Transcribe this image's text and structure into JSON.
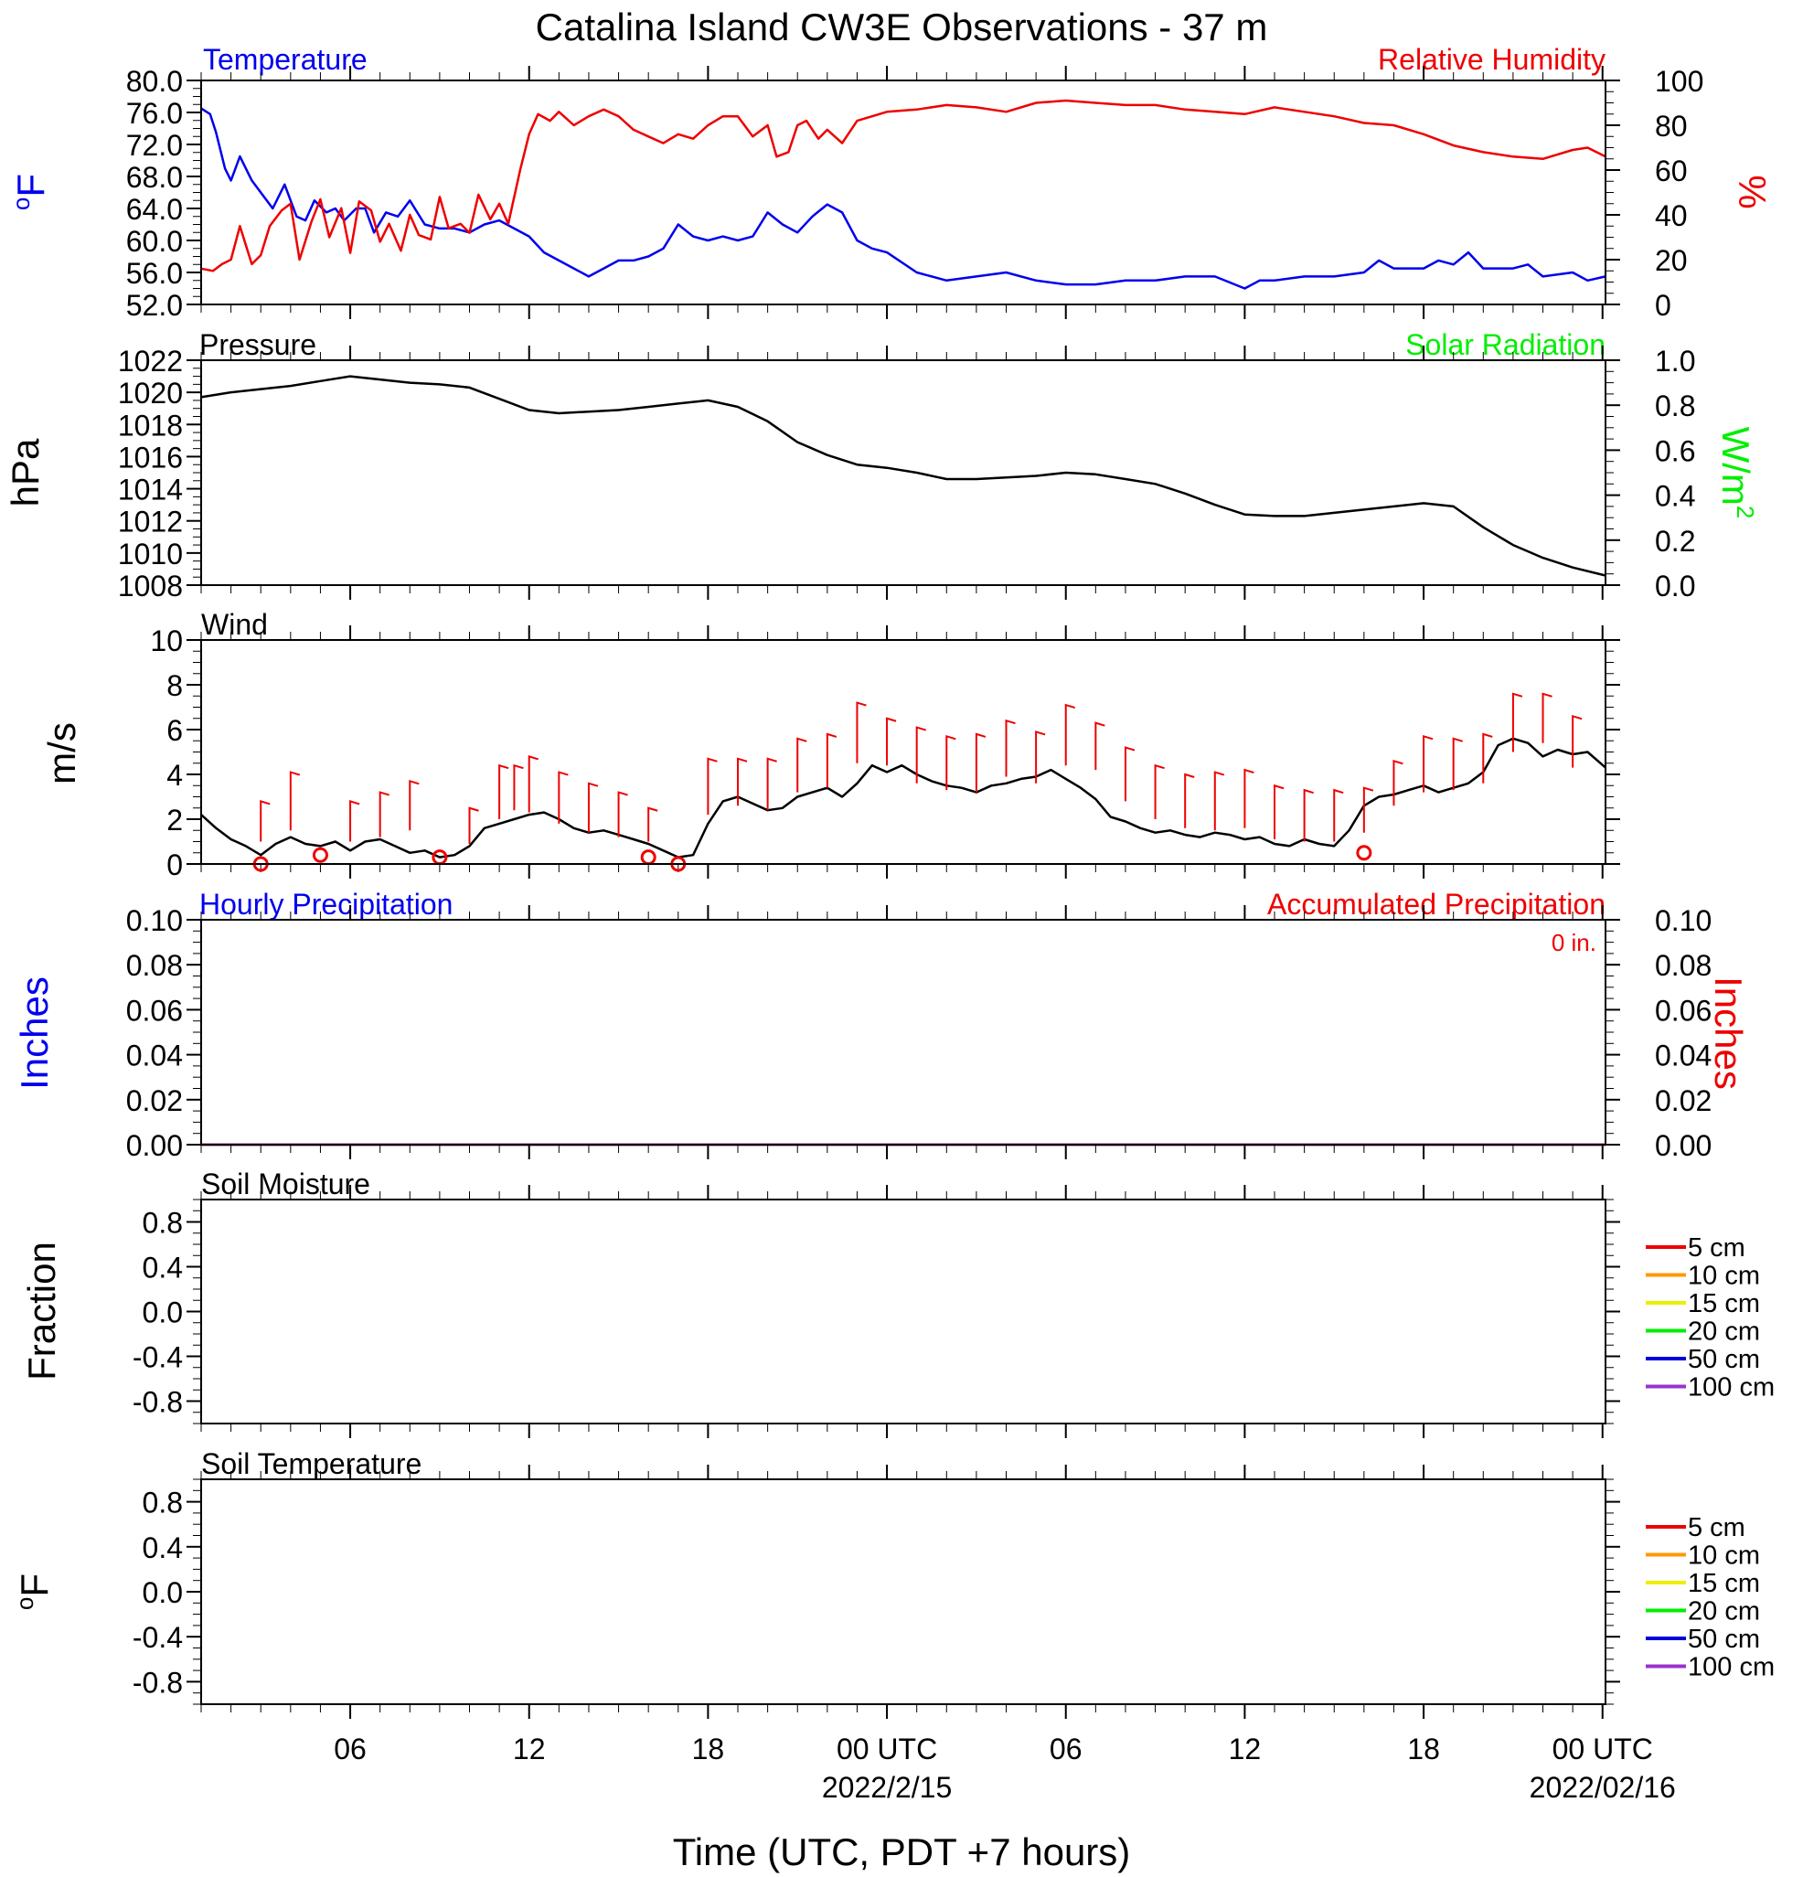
{
  "title": "Catalina Island CW3E Observations - 37 m",
  "xlabel": "Time (UTC, PDT +7 hours)",
  "x_ticks": [
    {
      "hour": 6,
      "label": "06"
    },
    {
      "hour": 12,
      "label": "12"
    },
    {
      "hour": 18,
      "label": "18"
    },
    {
      "hour": 24,
      "label": "00 UTC",
      "sublabel": "2022/2/15"
    },
    {
      "hour": 30,
      "label": "06"
    },
    {
      "hour": 36,
      "label": "12"
    },
    {
      "hour": 42,
      "label": "18"
    },
    {
      "hour": 48,
      "label": "00 UTC",
      "sublabel": "2022/02/16"
    }
  ],
  "colors": {
    "blue": "#0000ee",
    "red": "#ee0000",
    "green": "#00ee00",
    "black": "#000000",
    "darkred": "#aa0000"
  },
  "chart_data": [
    {
      "type": "line",
      "panel": "temperature_rh",
      "left_title": "Temperature",
      "right_title": "Relative Humidity",
      "left_unit": "oF",
      "right_unit": "%",
      "left_ticks": [
        "80.0",
        "76.0",
        "72.0",
        "68.0",
        "64.0",
        "60.0",
        "56.0",
        "52.0"
      ],
      "right_ticks": [
        "100",
        "80",
        "60",
        "40",
        "20",
        "0"
      ],
      "ylim_left": [
        52,
        80
      ],
      "ylim_right": [
        0,
        100
      ],
      "x_range_hours": [
        1,
        48.1
      ],
      "series": [
        {
          "name": "Temperature",
          "axis": "left",
          "color": "blue",
          "x": [
            1,
            1.3,
            1.5,
            1.8,
            2.0,
            2.3,
            2.7,
            3.0,
            3.4,
            3.8,
            4.2,
            4.5,
            4.8,
            5.2,
            5.5,
            5.8,
            6.2,
            6.5,
            6.8,
            7.2,
            7.6,
            8.0,
            8.5,
            9.0,
            9.5,
            10.0,
            10.5,
            11.0,
            11.5,
            12.0,
            12.5,
            13.0,
            13.5,
            14.0,
            14.5,
            15.0,
            15.5,
            16.0,
            16.5,
            17.0,
            17.5,
            18.0,
            18.5,
            19.0,
            19.5,
            20.0,
            20.5,
            21.0,
            21.5,
            22.0,
            22.5,
            23.0,
            23.5,
            24.0,
            25.0,
            26.0,
            27.0,
            28.0,
            29.0,
            30.0,
            31.0,
            32.0,
            33.0,
            34.0,
            35.0,
            36.0,
            36.5,
            37.0,
            38.0,
            39.0,
            40.0,
            40.5,
            41.0,
            42.0,
            42.5,
            43.0,
            43.5,
            44.0,
            45.0,
            45.5,
            46.0,
            47.0,
            47.5,
            48.1
          ],
          "y": [
            76.5,
            75.8,
            73.5,
            69.0,
            67.5,
            70.5,
            67.5,
            66.0,
            64.0,
            67.0,
            63.0,
            62.5,
            65.0,
            63.5,
            64.0,
            62.5,
            64.0,
            64.0,
            61.0,
            63.5,
            63.0,
            65.0,
            62.0,
            61.5,
            61.5,
            61.0,
            62.0,
            62.5,
            61.5,
            60.5,
            58.5,
            57.5,
            56.5,
            55.5,
            56.5,
            57.5,
            57.5,
            58.0,
            59.0,
            62.0,
            60.5,
            60.0,
            60.5,
            60.0,
            60.5,
            63.5,
            62.0,
            61.0,
            63.0,
            64.5,
            63.5,
            60.0,
            59.0,
            58.5,
            56.0,
            55.0,
            55.5,
            56.0,
            55.0,
            54.5,
            54.5,
            55.0,
            55.0,
            55.5,
            55.5,
            54.0,
            55.0,
            55.0,
            55.5,
            55.5,
            56.0,
            57.5,
            56.5,
            56.5,
            57.5,
            57.0,
            58.5,
            56.5,
            56.5,
            57.0,
            55.5,
            56.0,
            55.0,
            55.5
          ]
        },
        {
          "name": "Relative Humidity",
          "axis": "right",
          "color": "red",
          "x": [
            1,
            1.4,
            1.7,
            2.0,
            2.3,
            2.7,
            3.0,
            3.3,
            3.7,
            4.0,
            4.3,
            4.7,
            5.0,
            5.3,
            5.7,
            6.0,
            6.3,
            6.7,
            7.0,
            7.3,
            7.7,
            8.0,
            8.3,
            8.7,
            9.0,
            9.3,
            9.7,
            10.0,
            10.3,
            10.7,
            11.0,
            11.3,
            11.7,
            12.0,
            12.3,
            12.7,
            13.0,
            13.5,
            14.0,
            14.5,
            15.0,
            15.5,
            16.0,
            16.5,
            17.0,
            17.5,
            18.0,
            18.5,
            19.0,
            19.5,
            20.0,
            20.3,
            20.7,
            21.0,
            21.3,
            21.7,
            22.0,
            22.5,
            23.0,
            23.5,
            24.0,
            25.0,
            26.0,
            27.0,
            28.0,
            29.0,
            30.0,
            31.0,
            32.0,
            33.0,
            34.0,
            35.0,
            36.0,
            37.0,
            38.0,
            39.0,
            40.0,
            41.0,
            42.0,
            43.0,
            44.0,
            45.0,
            46.0,
            47.0,
            47.5,
            48.1
          ],
          "y": [
            16,
            15,
            18,
            20,
            35,
            18,
            22,
            35,
            42,
            45,
            20,
            37,
            47,
            30,
            43,
            23,
            46,
            42,
            28,
            36,
            24,
            40,
            31,
            29,
            48,
            34,
            36,
            32,
            49,
            38,
            45,
            36,
            60,
            76,
            85,
            82,
            86,
            80,
            84,
            87,
            84,
            78,
            75,
            72,
            76,
            74,
            80,
            84,
            84,
            75,
            80,
            66,
            68,
            80,
            82,
            74,
            78,
            72,
            82,
            84,
            86,
            87,
            89,
            88,
            86,
            90,
            91,
            90,
            89,
            89,
            87,
            86,
            85,
            88,
            86,
            84,
            81,
            80,
            76,
            71,
            68,
            66,
            65,
            69,
            70,
            66
          ]
        },
        {
          "name": "Relative Humidity tail",
          "axis": "right",
          "color": "red",
          "x": [],
          "y": []
        }
      ]
    },
    {
      "type": "line",
      "panel": "pressure_solar",
      "left_title": "Pressure",
      "right_title": "Solar Radiation",
      "left_unit": "hPa",
      "right_unit": "W/m",
      "right_unit_sup": "2",
      "left_ticks": [
        "1022",
        "1020",
        "1018",
        "1016",
        "1014",
        "1012",
        "1010",
        "1008"
      ],
      "right_ticks": [
        "1.0",
        "0.8",
        "0.6",
        "0.4",
        "0.2",
        "0.0"
      ],
      "ylim_left": [
        1008,
        1022
      ],
      "ylim_right": [
        0,
        1
      ],
      "x_range_hours": [
        1,
        48.1
      ],
      "series": [
        {
          "name": "Pressure",
          "axis": "left",
          "color": "black",
          "x": [
            1,
            2,
            3,
            4,
            5,
            6,
            7,
            8,
            9,
            10,
            11,
            12,
            13,
            14,
            15,
            16,
            17,
            18,
            19,
            20,
            21,
            22,
            23,
            24,
            25,
            26,
            27,
            28,
            29,
            30,
            31,
            32,
            33,
            34,
            35,
            36,
            37,
            38,
            39,
            40,
            41,
            42,
            43,
            44,
            45,
            46,
            47,
            48.1
          ],
          "y": [
            1019.7,
            1020.0,
            1020.2,
            1020.4,
            1020.7,
            1021.0,
            1020.8,
            1020.6,
            1020.5,
            1020.3,
            1019.6,
            1018.9,
            1018.7,
            1018.8,
            1018.9,
            1019.1,
            1019.3,
            1019.5,
            1019.1,
            1018.2,
            1016.9,
            1016.1,
            1015.5,
            1015.3,
            1015.0,
            1014.6,
            1014.6,
            1014.7,
            1014.8,
            1015.0,
            1014.9,
            1014.6,
            1014.3,
            1013.7,
            1013.0,
            1012.4,
            1012.3,
            1012.3,
            1012.5,
            1012.7,
            1012.9,
            1013.1,
            1012.9,
            1011.6,
            1010.5,
            1009.7,
            1009.1,
            1008.6
          ]
        }
      ]
    },
    {
      "type": "line",
      "panel": "wind",
      "left_title": "Wind",
      "left_unit": "m/s",
      "left_ticks": [
        "10",
        "8",
        "6",
        "4",
        "2",
        "0"
      ],
      "ylim_left": [
        0,
        10
      ],
      "x_range_hours": [
        1,
        48.1
      ],
      "series": [
        {
          "name": "Wind speed",
          "axis": "left",
          "color": "black",
          "x": [
            1,
            1.5,
            2,
            2.5,
            3,
            3.5,
            4,
            4.5,
            5,
            5.5,
            6,
            6.5,
            7,
            7.5,
            8,
            8.5,
            9,
            9.5,
            10,
            10.5,
            11,
            11.5,
            12,
            12.5,
            13,
            13.5,
            14,
            14.5,
            15,
            15.5,
            16,
            16.5,
            17,
            17.5,
            18,
            18.5,
            19,
            19.5,
            20,
            20.5,
            21,
            21.5,
            22,
            22.5,
            23,
            23.5,
            24,
            24.5,
            25,
            25.5,
            26,
            26.5,
            27,
            27.5,
            28,
            28.5,
            29,
            29.5,
            30,
            30.5,
            31,
            31.5,
            32,
            32.5,
            33,
            33.5,
            34,
            34.5,
            35,
            35.5,
            36,
            36.5,
            37,
            37.5,
            38,
            38.5,
            39,
            39.5,
            40,
            40.5,
            41,
            41.5,
            42,
            42.5,
            43,
            43.5,
            44,
            44.5,
            45,
            45.5,
            46,
            46.5,
            47,
            47.5,
            48.1
          ],
          "y": [
            2.2,
            1.6,
            1.1,
            0.8,
            0.4,
            0.9,
            1.2,
            0.9,
            0.8,
            1.0,
            0.6,
            1.0,
            1.1,
            0.8,
            0.5,
            0.6,
            0.3,
            0.4,
            0.8,
            1.6,
            1.8,
            2.0,
            2.2,
            2.3,
            2.0,
            1.6,
            1.4,
            1.5,
            1.3,
            1.1,
            0.9,
            0.6,
            0.3,
            0.4,
            1.8,
            2.8,
            3.0,
            2.7,
            2.4,
            2.5,
            3.0,
            3.2,
            3.4,
            3.0,
            3.6,
            4.4,
            4.1,
            4.4,
            4.0,
            3.7,
            3.5,
            3.4,
            3.2,
            3.5,
            3.6,
            3.8,
            3.9,
            4.2,
            3.8,
            3.4,
            2.9,
            2.1,
            1.9,
            1.6,
            1.4,
            1.5,
            1.3,
            1.2,
            1.4,
            1.3,
            1.1,
            1.2,
            0.9,
            0.8,
            1.1,
            0.9,
            0.8,
            1.5,
            2.6,
            3.0,
            3.1,
            3.3,
            3.5,
            3.2,
            3.4,
            3.6,
            4.1,
            5.3,
            5.6,
            5.4,
            4.8,
            5.1,
            4.9,
            5.0,
            4.3
          ]
        },
        {
          "name": "Calm markers",
          "axis": "left",
          "color": "red",
          "marker": "circle",
          "x": [
            3.0,
            5.0,
            9.0,
            16.0,
            17.0,
            40.0
          ],
          "y": [
            0.0,
            0.4,
            0.3,
            0.3,
            0.0,
            0.5
          ]
        }
      ],
      "barbs": {
        "color": "red",
        "x": [
          3.0,
          4.0,
          6.0,
          7.0,
          8.0,
          10.0,
          11.0,
          11.5,
          12.0,
          13.0,
          14.0,
          15.0,
          16.0,
          18.0,
          19.0,
          20.0,
          21.0,
          22.0,
          23.0,
          24.0,
          25.0,
          26.0,
          27.0,
          28.0,
          29.0,
          30.0,
          31.0,
          32.0,
          33.0,
          34.0,
          35.0,
          36.0,
          37.0,
          38.0,
          39.0,
          40.0,
          41.0,
          42.0,
          43.0,
          44.0,
          45.0,
          46.0,
          47.0
        ],
        "y": [
          1.0,
          1.5,
          1.0,
          1.2,
          1.5,
          0.9,
          2.0,
          2.4,
          2.3,
          1.8,
          1.4,
          1.2,
          1.0,
          2.2,
          2.6,
          2.4,
          3.2,
          3.4,
          4.5,
          4.4,
          3.6,
          3.3,
          3.2,
          3.9,
          3.6,
          4.4,
          4.2,
          2.8,
          2.0,
          1.6,
          1.5,
          1.6,
          1.1,
          1.0,
          1.0,
          1.4,
          2.6,
          3.2,
          3.3,
          3.6,
          5.0,
          5.4,
          4.3
        ],
        "len": [
          1.8,
          2.6,
          1.8,
          2.0,
          2.2,
          1.6,
          2.4,
          2.0,
          2.5,
          2.3,
          2.2,
          2.0,
          1.5,
          2.5,
          2.1,
          2.3,
          2.4,
          2.4,
          2.7,
          2.1,
          2.5,
          2.4,
          2.6,
          2.5,
          2.3,
          2.7,
          2.1,
          2.4,
          2.4,
          2.4,
          2.6,
          2.6,
          2.4,
          2.3,
          2.3,
          2.0,
          2.0,
          2.5,
          2.3,
          2.2,
          2.6,
          2.2,
          2.3
        ]
      }
    },
    {
      "type": "line",
      "panel": "precipitation",
      "left_title": "Hourly Precipitation",
      "right_title": "Accumulated Precipitation",
      "accum_label": "0 in.",
      "left_unit": "Inches",
      "right_unit": "Inches",
      "left_ticks": [
        "0.10",
        "0.08",
        "0.06",
        "0.04",
        "0.02",
        "0.00"
      ],
      "right_ticks": [
        "0.10",
        "0.08",
        "0.06",
        "0.04",
        "0.02",
        "0.00"
      ],
      "ylim_left": [
        0,
        0.1
      ],
      "ylim_right": [
        0,
        0.1
      ],
      "x_range_hours": [
        1,
        48.1
      ],
      "series": [
        {
          "name": "Hourly Precipitation",
          "axis": "left",
          "color": "blue",
          "x": [
            1,
            48.1
          ],
          "y": [
            0,
            0
          ]
        },
        {
          "name": "Accumulated Precipitation",
          "axis": "right",
          "color": "darkred",
          "x": [
            1,
            48.1
          ],
          "y": [
            0,
            0
          ]
        }
      ]
    },
    {
      "type": "line",
      "panel": "soil_moisture",
      "left_title": "Soil Moisture",
      "left_unit": "Fraction",
      "left_ticks": [
        "0.8",
        "0.4",
        "0.0",
        "-0.4",
        "-0.8"
      ],
      "ylim_left": [
        -1,
        1
      ],
      "legend": [
        {
          "label": "5 cm",
          "color": "#ee0000"
        },
        {
          "label": "10 cm",
          "color": "#ff9900"
        },
        {
          "label": "15 cm",
          "color": "#eeee00"
        },
        {
          "label": "20 cm",
          "color": "#00ee00"
        },
        {
          "label": "50 cm",
          "color": "#0000dd"
        },
        {
          "label": "100 cm",
          "color": "#9933cc"
        }
      ],
      "series": []
    },
    {
      "type": "line",
      "panel": "soil_temperature",
      "left_title": "Soil Temperature",
      "left_unit": "oF",
      "left_ticks": [
        "0.8",
        "0.4",
        "0.0",
        "-0.4",
        "-0.8"
      ],
      "ylim_left": [
        -1,
        1
      ],
      "legend": [
        {
          "label": "5 cm",
          "color": "#ee0000"
        },
        {
          "label": "10 cm",
          "color": "#ff9900"
        },
        {
          "label": "15 cm",
          "color": "#eeee00"
        },
        {
          "label": "20 cm",
          "color": "#00ee00"
        },
        {
          "label": "50 cm",
          "color": "#0000dd"
        },
        {
          "label": "100 cm",
          "color": "#9933cc"
        }
      ],
      "series": []
    }
  ]
}
